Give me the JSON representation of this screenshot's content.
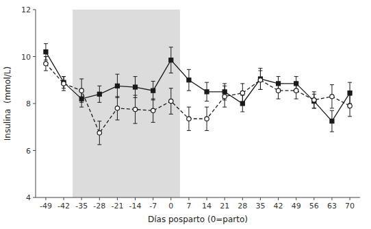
{
  "chart_data": {
    "type": "line",
    "xlabel": "Días posparto (0=parto)",
    "ylabel": "Insulina  (mmol/L)",
    "x": [
      -49,
      -42,
      -35,
      -28,
      -21,
      -14,
      -7,
      0,
      7,
      14,
      21,
      28,
      35,
      42,
      49,
      56,
      63,
      70
    ],
    "series": [
      {
        "color": "#1a1a1a",
        "marker": "square",
        "line_style": "solid",
        "values": [
          10.2,
          8.9,
          8.2,
          8.4,
          8.75,
          8.7,
          8.55,
          9.85,
          9.0,
          8.5,
          8.5,
          8.0,
          9.05,
          8.85,
          8.85,
          8.1,
          7.25,
          8.45
        ],
        "errors": [
          0.35,
          0.25,
          0.35,
          0.35,
          0.5,
          0.45,
          0.4,
          0.55,
          0.45,
          0.4,
          0.35,
          0.35,
          0.45,
          0.3,
          0.3,
          0.3,
          0.45,
          0.45
        ]
      },
      {
        "color": "#1a1a1a",
        "marker": "open-circle",
        "line_style": "dashed",
        "values": [
          9.7,
          8.85,
          8.55,
          6.75,
          7.8,
          7.75,
          7.7,
          8.1,
          7.35,
          7.35,
          8.3,
          8.45,
          9.0,
          8.55,
          8.55,
          8.15,
          8.3,
          7.9
        ],
        "errors": [
          0.3,
          0.3,
          0.5,
          0.5,
          0.5,
          0.6,
          0.5,
          0.55,
          0.5,
          0.5,
          0.45,
          0.4,
          0.4,
          0.35,
          0.35,
          0.35,
          0.5,
          0.45
        ]
      }
    ],
    "span": {
      "x": [
        -38.5,
        3.5
      ],
      "color": "#dcdcdc"
    },
    "xlim": [
      -53,
      74
    ],
    "xticks": [
      -49,
      -42,
      -35,
      -28,
      -21,
      -14,
      -7,
      0,
      7,
      14,
      21,
      28,
      35,
      42,
      49,
      56,
      63,
      70
    ],
    "ylim": [
      4,
      12
    ],
    "yticks": [
      4,
      6,
      8,
      10,
      12
    ],
    "grid": false
  }
}
